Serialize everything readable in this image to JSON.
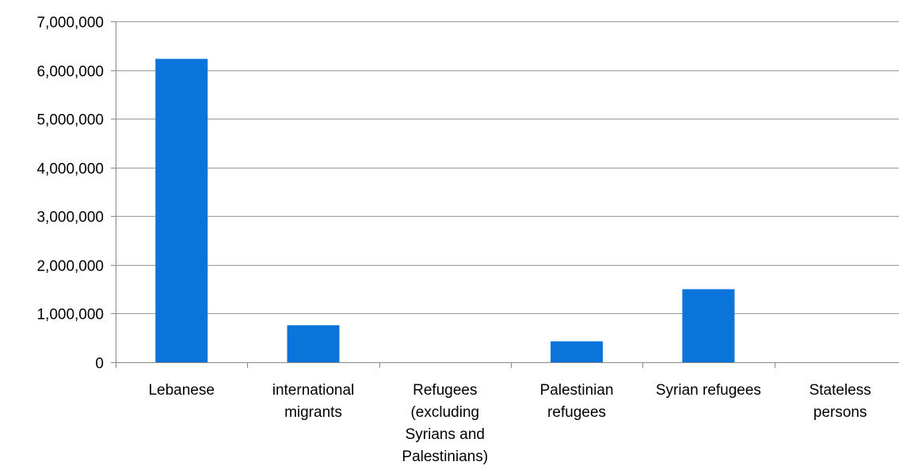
{
  "chart_data": {
    "type": "bar",
    "categories": [
      [
        "Lebanese"
      ],
      [
        "international",
        "migrants"
      ],
      [
        "Refugees",
        "(excluding",
        "Syrians and",
        "Palestinians)"
      ],
      [
        "Palestinian",
        "refugees"
      ],
      [
        "Syrian refugees"
      ],
      [
        "Stateless",
        "persons"
      ]
    ],
    "values": [
      6230000,
      760000,
      0,
      430000,
      1500000,
      0
    ],
    "ylim": [
      0,
      7000000
    ],
    "yticks": [
      0,
      1000000,
      2000000,
      3000000,
      4000000,
      5000000,
      6000000,
      7000000
    ],
    "ytick_labels": [
      "0",
      "1,000,000",
      "2,000,000",
      "3,000,000",
      "4,000,000",
      "5,000,000",
      "6,000,000",
      "7,000,000"
    ],
    "grid": true,
    "legend": "none",
    "colors": {
      "bar": "#0A74DA",
      "grid": "#999999",
      "axis": "#888888"
    }
  }
}
